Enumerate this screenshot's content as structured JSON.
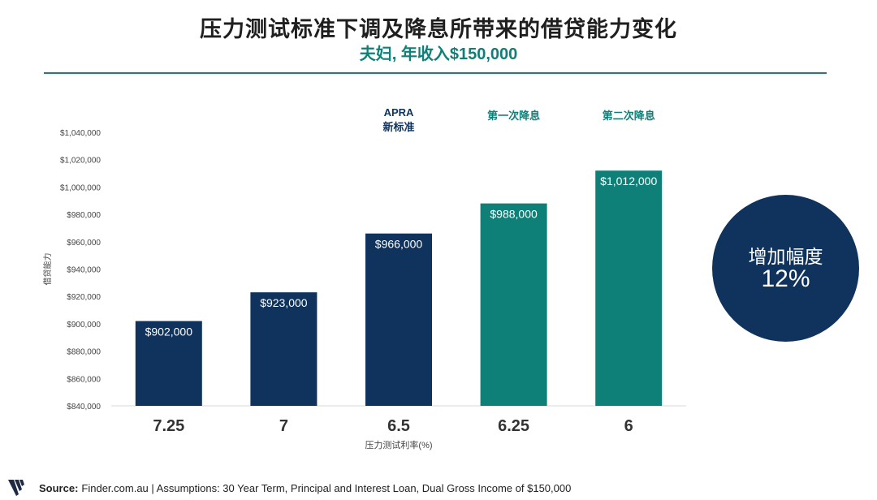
{
  "header": {
    "title": "压力测试标准下调及降息所带来的借贷能力变化",
    "subtitle": "夫妇, 年收入$150,000"
  },
  "colors": {
    "navy": "#0f335c",
    "teal": "#0f8078",
    "rule": "#1f7d86"
  },
  "chart_data": {
    "type": "bar",
    "categories": [
      "7.25",
      "7",
      "6.5",
      "6.25",
      "6"
    ],
    "values": [
      902000,
      923000,
      966000,
      988000,
      1012000
    ],
    "data_labels": [
      "$902,000",
      "$923,000",
      "$966,000",
      "$988,000",
      "$1,012,000"
    ],
    "bar_colors": [
      "#0f335c",
      "#0f335c",
      "#0f335c",
      "#0f8078",
      "#0f8078"
    ],
    "xlabel": "压力测试利率(%)",
    "ylabel": "借贷能力",
    "ylim": [
      840000,
      1040000
    ],
    "yticks": [
      840000,
      860000,
      880000,
      900000,
      920000,
      940000,
      960000,
      980000,
      1000000,
      1020000,
      1040000
    ],
    "ytick_labels": [
      "$840,000",
      "$860,000",
      "$880,000",
      "$900,000",
      "$920,000",
      "$940,000",
      "$960,000",
      "$980,000",
      "$1,000,000",
      "$1,020,000",
      "$1,040,000"
    ],
    "annotations": [
      {
        "category": "6.5",
        "lines": [
          "APRA",
          "新标准"
        ],
        "color": "#0f335c"
      },
      {
        "category": "6.25",
        "lines": [
          "第一次降息"
        ],
        "color": "#0f8078"
      },
      {
        "category": "6",
        "lines": [
          "第二次降息"
        ],
        "color": "#0f8078"
      }
    ]
  },
  "badge": {
    "line1": "增加幅度",
    "line2": "12%"
  },
  "footer": {
    "source_label": "Source:",
    "source_text": "Finder.com.au | Assumptions: 30 Year Term, Principal and Interest Loan, Dual Gross Income of $150,000"
  }
}
